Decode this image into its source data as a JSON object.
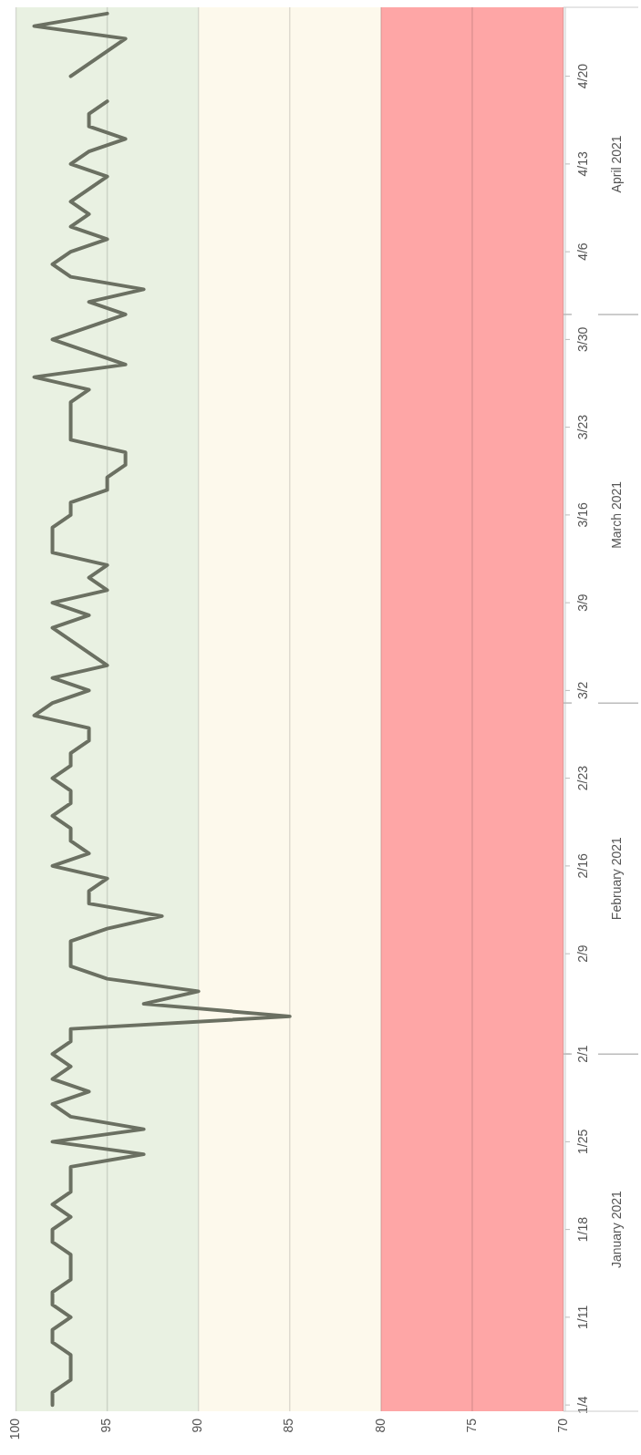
{
  "chart_data": {
    "type": "line",
    "x": [
      "2021-01-04",
      "2021-01-05",
      "2021-01-06",
      "2021-01-07",
      "2021-01-08",
      "2021-01-09",
      "2021-01-10",
      "2021-01-11",
      "2021-01-12",
      "2021-01-13",
      "2021-01-14",
      "2021-01-15",
      "2021-01-16",
      "2021-01-17",
      "2021-01-18",
      "2021-01-19",
      "2021-01-20",
      "2021-01-21",
      "2021-01-22",
      "2021-01-23",
      "2021-01-24",
      "2021-01-25",
      "2021-01-26",
      "2021-01-27",
      "2021-01-28",
      "2021-01-29",
      "2021-01-30",
      "2021-01-31",
      "2021-02-01",
      "2021-02-02",
      "2021-02-03",
      "2021-02-04",
      "2021-02-05",
      "2021-02-06",
      "2021-02-07",
      "2021-02-08",
      "2021-02-09",
      "2021-02-10",
      "2021-02-11",
      "2021-02-12",
      "2021-02-13",
      "2021-02-14",
      "2021-02-15",
      "2021-02-16",
      "2021-02-17",
      "2021-02-18",
      "2021-02-19",
      "2021-02-20",
      "2021-02-21",
      "2021-02-22",
      "2021-02-23",
      "2021-02-24",
      "2021-02-25",
      "2021-02-26",
      "2021-02-27",
      "2021-02-28",
      "2021-03-01",
      "2021-03-02",
      "2021-03-03",
      "2021-03-04",
      "2021-03-05",
      "2021-03-06",
      "2021-03-07",
      "2021-03-08",
      "2021-03-09",
      "2021-03-10",
      "2021-03-11",
      "2021-03-12",
      "2021-03-13",
      "2021-03-14",
      "2021-03-15",
      "2021-03-16",
      "2021-03-17",
      "2021-03-18",
      "2021-03-19",
      "2021-03-20",
      "2021-03-21",
      "2021-03-22",
      "2021-03-23",
      "2021-03-24",
      "2021-03-25",
      "2021-03-26",
      "2021-03-27",
      "2021-03-28",
      "2021-03-29",
      "2021-03-30",
      "2021-03-31",
      "2021-04-01",
      "2021-04-02",
      "2021-04-03",
      "2021-04-04",
      "2021-04-05",
      "2021-04-06",
      "2021-04-07",
      "2021-04-08",
      "2021-04-09",
      "2021-04-10",
      "2021-04-11",
      "2021-04-12",
      "2021-04-13",
      "2021-04-14",
      "2021-04-15",
      "2021-04-16",
      "2021-04-17",
      "2021-04-18",
      "2021-04-19",
      "2021-04-20",
      "2021-04-21",
      "2021-04-22",
      "2021-04-23",
      "2021-04-24",
      "2021-04-25"
    ],
    "series": [
      {
        "color": "#6b7062",
        "values": [
          98,
          98,
          97,
          97,
          97,
          98,
          98,
          97,
          98,
          98,
          97,
          97,
          97,
          98,
          98,
          97,
          98,
          97,
          97,
          97,
          93,
          98,
          93,
          97,
          98,
          96,
          98,
          97,
          98,
          97,
          97,
          85,
          93,
          90,
          95,
          97,
          97,
          97,
          95,
          92,
          96,
          96,
          95,
          98,
          96,
          97,
          97,
          98,
          97,
          97,
          98,
          97,
          97,
          96,
          96,
          99,
          98,
          96,
          98,
          95,
          96,
          97,
          98,
          96,
          98,
          95,
          96,
          95,
          98,
          98,
          98,
          97,
          97,
          95,
          95,
          94,
          94,
          97,
          97,
          97,
          97,
          96,
          99,
          94,
          96,
          98,
          96,
          94,
          96,
          93,
          97,
          98,
          97,
          95,
          97,
          96,
          97,
          96,
          95,
          97,
          96,
          94,
          96,
          96,
          95,
          null,
          97,
          96,
          95,
          94,
          99,
          95
        ]
      }
    ],
    "orientation": "horizontal",
    "ylim": [
      "2021-01-03T12:00",
      "2021-04-25T12:00"
    ],
    "yticks": [
      {
        "value": "2021-01-04",
        "label": "1/4"
      },
      {
        "value": "2021-01-11",
        "label": "1/11"
      },
      {
        "value": "2021-01-18",
        "label": "1/18"
      },
      {
        "value": "2021-01-25",
        "label": "1/25"
      },
      {
        "value": "2021-02-01",
        "label": "2/1"
      },
      {
        "value": "2021-02-09",
        "label": "2/9"
      },
      {
        "value": "2021-02-16",
        "label": "2/16"
      },
      {
        "value": "2021-02-23",
        "label": "2/23"
      },
      {
        "value": "2021-03-02",
        "label": "3/2"
      },
      {
        "value": "2021-03-09",
        "label": "3/9"
      },
      {
        "value": "2021-03-16",
        "label": "3/16"
      },
      {
        "value": "2021-03-23",
        "label": "3/23"
      },
      {
        "value": "2021-03-30",
        "label": "3/30"
      },
      {
        "value": "2021-04-06",
        "label": "4/6"
      },
      {
        "value": "2021-04-13",
        "label": "4/13"
      },
      {
        "value": "2021-04-20",
        "label": "4/20"
      }
    ],
    "y2lim": [
      "2021-01-03T12:00",
      "2021-04-25T12:00"
    ],
    "y2ticks": [
      {
        "value": "2021-01-18",
        "label": "January 2021"
      },
      {
        "value": "2021-02-01",
        "label": null
      },
      {
        "value": "2021-02-15",
        "label": "February 2021"
      },
      {
        "value": "2021-03-01",
        "label": null
      },
      {
        "value": "2021-03-16",
        "label": "March 2021"
      },
      {
        "value": "2021-04-01",
        "label": null
      },
      {
        "value": "2021-04-13",
        "label": "April 2021"
      }
    ],
    "xlim": [
      100,
      70
    ],
    "xticks": [
      100,
      95,
      90,
      85,
      80,
      75,
      70
    ],
    "grid": "x",
    "bands": [
      {
        "axis": "x",
        "from": 90,
        "to": 100,
        "color": "#e9f1e2"
      },
      {
        "axis": "x",
        "from": 80,
        "to": 90,
        "color": "#fdf9ec"
      },
      {
        "axis": "x",
        "from": 70,
        "to": 80,
        "color": "#fea6a6"
      }
    ]
  }
}
